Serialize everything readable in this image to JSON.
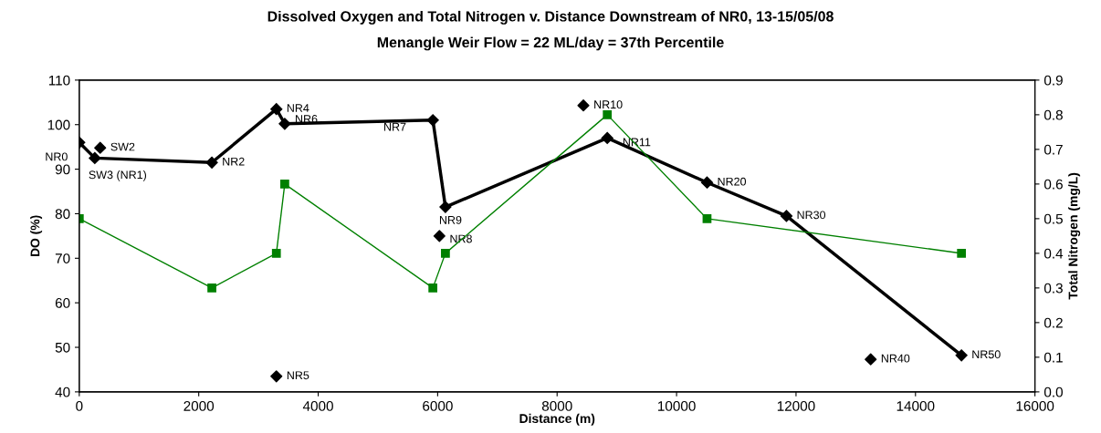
{
  "chart_data": {
    "type": "line",
    "title": "Dissolved Oxygen and Total Nitrogen v. Distance Downstream of NR0, 13-15/05/08",
    "subtitle": "Menangle Weir Flow = 22 ML/day = 37th Percentile",
    "xlabel": "Distance (m)",
    "ylabel": "DO (%)",
    "y2label": "Total Nitrogen (mg/L)",
    "xlim": [
      0,
      16000
    ],
    "xticks": [
      0,
      2000,
      4000,
      6000,
      8000,
      10000,
      12000,
      14000,
      16000
    ],
    "ylim": [
      40,
      110
    ],
    "yticks": [
      40,
      50,
      60,
      70,
      80,
      90,
      100,
      110
    ],
    "y2lim": [
      0,
      0.9
    ],
    "y2ticks": [
      {
        "value": 0,
        "label": "0.0"
      },
      0.1,
      0.2,
      0.3,
      0.4,
      0.5,
      0.6,
      0.7,
      0.8,
      0.9
    ],
    "grid": false,
    "legend": false,
    "series": [
      {
        "color": "#000000",
        "marker": "diamond",
        "x": [
          0,
          260,
          2220,
          3300,
          3440,
          5920,
          6130,
          8840,
          10510,
          11840,
          14770
        ],
        "values": [
          96,
          92.5,
          91.5,
          103.5,
          100.2,
          101,
          81.5,
          97,
          87,
          79.5,
          48.2
        ]
      },
      {
        "type": "scatter",
        "color": "#000000",
        "marker": "diamond",
        "x": [
          350,
          3300,
          6030,
          8440,
          13250
        ],
        "values": [
          94.8,
          43.5,
          75,
          104.3,
          47.3
        ]
      },
      {
        "color": "#008000",
        "marker": "square",
        "axis": "y2",
        "x": [
          0,
          2220,
          3300,
          3440,
          5920,
          6130,
          8840,
          10510,
          14770
        ],
        "values": [
          0.5,
          0.3,
          0.4,
          0.6,
          0.3,
          0.4,
          0.8,
          0.5,
          0.4
        ]
      }
    ],
    "annotations": [
      {
        "text": "NR0",
        "x": 0,
        "y": 96
      },
      {
        "text": "SW3 (NR1)",
        "x": 260,
        "y": 92.5
      },
      {
        "text": "SW2",
        "x": 350,
        "y": 94.8
      },
      {
        "text": "NR2",
        "x": 2220,
        "y": 91.5
      },
      {
        "text": "NR4",
        "x": 3300,
        "y": 103.5
      },
      {
        "text": "NR5",
        "x": 3300,
        "y": 43.5
      },
      {
        "text": "NR6",
        "x": 3440,
        "y": 100.2
      },
      {
        "text": "NR7",
        "x": 5920,
        "y": 101
      },
      {
        "text": "NR8",
        "x": 6030,
        "y": 75
      },
      {
        "text": "NR9",
        "x": 6130,
        "y": 81.5
      },
      {
        "text": "NR10",
        "x": 8440,
        "y": 104.3
      },
      {
        "text": "NR11",
        "x": 8840,
        "y": 97
      },
      {
        "text": "NR20",
        "x": 10510,
        "y": 87
      },
      {
        "text": "NR30",
        "x": 11840,
        "y": 79.5
      },
      {
        "text": "NR40",
        "x": 13250,
        "y": 47.3
      },
      {
        "text": "NR50",
        "x": 14770,
        "y": 48.2
      }
    ]
  }
}
